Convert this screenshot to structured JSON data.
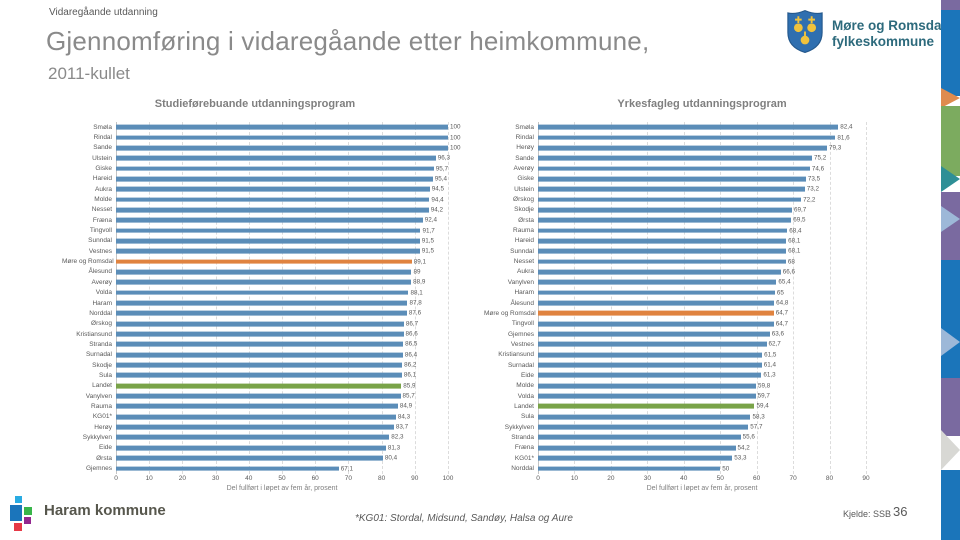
{
  "header": {
    "eyebrow": "Vidaregåande utdanning",
    "title": "Gjennomføring i vidaregåande etter heimkommune,",
    "subtitle": "2011-kullet"
  },
  "brand": {
    "org_line1": "Møre og Romsdal",
    "org_line2": "fylkeskommune"
  },
  "footer": {
    "municipality": "Haram kommune",
    "footnote": "*KG01: Stordal, Midsund, Sandøy, Halsa og Aure",
    "source": "Kjelde: SSB",
    "page_number": "36"
  },
  "colors": {
    "bar_default": "#5b8db8",
    "bar_region_highlight": "#e0833f",
    "bar_country_highlight": "#79a348",
    "grid": "#dcdcdc",
    "strip_blue": "#1b75ba",
    "strip_green": "#7cab5f",
    "strip_purple": "#7a6aa0",
    "strip_orange": "#df8b4e",
    "strip_teal": "#2e8f96",
    "strip_lightblue": "#9db8d8",
    "strip_silver": "#d8d8d4"
  },
  "chart_data": [
    {
      "type": "bar",
      "orientation": "horizontal",
      "title": "Studieførebuande utdanningsprogram",
      "xlabel": "Del fullført i løpet av fem år, prosent",
      "xlim": [
        0,
        100
      ],
      "xticks": [
        0,
        10,
        20,
        30,
        40,
        50,
        60,
        70,
        80,
        90,
        100
      ],
      "grid": true,
      "legend": "none",
      "highlight_region": "Møre og Romsdal",
      "highlight_country": "Landet",
      "categories": [
        "Smøla",
        "Rindal",
        "Sande",
        "Ulstein",
        "Giske",
        "Hareid",
        "Aukra",
        "Molde",
        "Nesset",
        "Fræna",
        "Tingvoll",
        "Sunndal",
        "Vestnes",
        "Møre og Romsdal",
        "Ålesund",
        "Averøy",
        "Volda",
        "Haram",
        "Norddal",
        "Ørskog",
        "Kristiansund",
        "Stranda",
        "Surnadal",
        "Skodje",
        "Sula",
        "Landet",
        "Vanylven",
        "Rauma",
        "KG01*",
        "Herøy",
        "Sykkylven",
        "Eide",
        "Ørsta",
        "Gjemnes"
      ],
      "values": [
        100,
        100,
        100,
        96.3,
        95.7,
        95.4,
        94.5,
        94.4,
        94.2,
        92.4,
        91.7,
        91.5,
        91.5,
        89.1,
        89,
        88.9,
        88.1,
        87.8,
        87.6,
        86.7,
        86.6,
        86.5,
        86.4,
        86.2,
        86.1,
        85.9,
        85.7,
        84.9,
        84.3,
        83.7,
        82.3,
        81.3,
        80.4,
        67.1
      ],
      "value_labels": [
        "100",
        "100",
        "100",
        "96,3",
        "95,7",
        "95,4",
        "94,5",
        "94,4",
        "94,2",
        "92,4",
        "91,7",
        "91,5",
        "91,5",
        "89,1",
        "89",
        "88,9",
        "88,1",
        "87,8",
        "87,6",
        "86,7",
        "86,6",
        "86,5",
        "86,4",
        "86,2",
        "86,1",
        "85,9",
        "85,7",
        "84,9",
        "84,3",
        "83,7",
        "82,3",
        "81,3",
        "80,4",
        "67,1"
      ]
    },
    {
      "type": "bar",
      "orientation": "horizontal",
      "title": "Yrkesfagleg utdanningsprogram",
      "xlabel": "Del fullført i løpet av fem år, prosent",
      "xlim": [
        0,
        90
      ],
      "xticks": [
        0,
        10,
        20,
        30,
        40,
        50,
        60,
        70,
        80,
        90
      ],
      "grid": true,
      "legend": "none",
      "highlight_region": "Møre og Romsdal",
      "highlight_country": "Landet",
      "categories": [
        "Smøla",
        "Rindal",
        "Herøy",
        "Sande",
        "Averøy",
        "Giske",
        "Ulstein",
        "Ørskog",
        "Skodje",
        "Ørsta",
        "Rauma",
        "Hareid",
        "Sunndal",
        "Nesset",
        "Aukra",
        "Vanylven",
        "Haram",
        "Ålesund",
        "Møre og Romsdal",
        "Tingvoll",
        "Gjemnes",
        "Vestnes",
        "Kristiansund",
        "Surnadal",
        "Eide",
        "Molde",
        "Volda",
        "Landet",
        "Sula",
        "Sykkylven",
        "Stranda",
        "Fræna",
        "KG01*",
        "Norddal"
      ],
      "values": [
        82.4,
        81.6,
        79.3,
        75.2,
        74.6,
        73.5,
        73.2,
        72.2,
        69.7,
        69.5,
        68.4,
        68.1,
        68.1,
        68,
        66.6,
        65.4,
        65,
        64.8,
        64.7,
        64.7,
        63.6,
        62.7,
        61.5,
        61.4,
        61.3,
        59.8,
        59.7,
        59.4,
        58.3,
        57.7,
        55.6,
        54.2,
        53.3,
        50
      ],
      "value_labels": [
        "82,4",
        "81,6",
        "79,3",
        "75,2",
        "74,6",
        "73,5",
        "73,2",
        "72,2",
        "69,7",
        "69,5",
        "68,4",
        "68,1",
        "68,1",
        "68",
        "66,6",
        "65,4",
        "65",
        "64,8",
        "64,7",
        "64,7",
        "63,6",
        "62,7",
        "61,5",
        "61,4",
        "61,3",
        "59,8",
        "59,7",
        "59,4",
        "58,3",
        "57,7",
        "55,6",
        "54,2",
        "53,3",
        "50"
      ]
    }
  ]
}
